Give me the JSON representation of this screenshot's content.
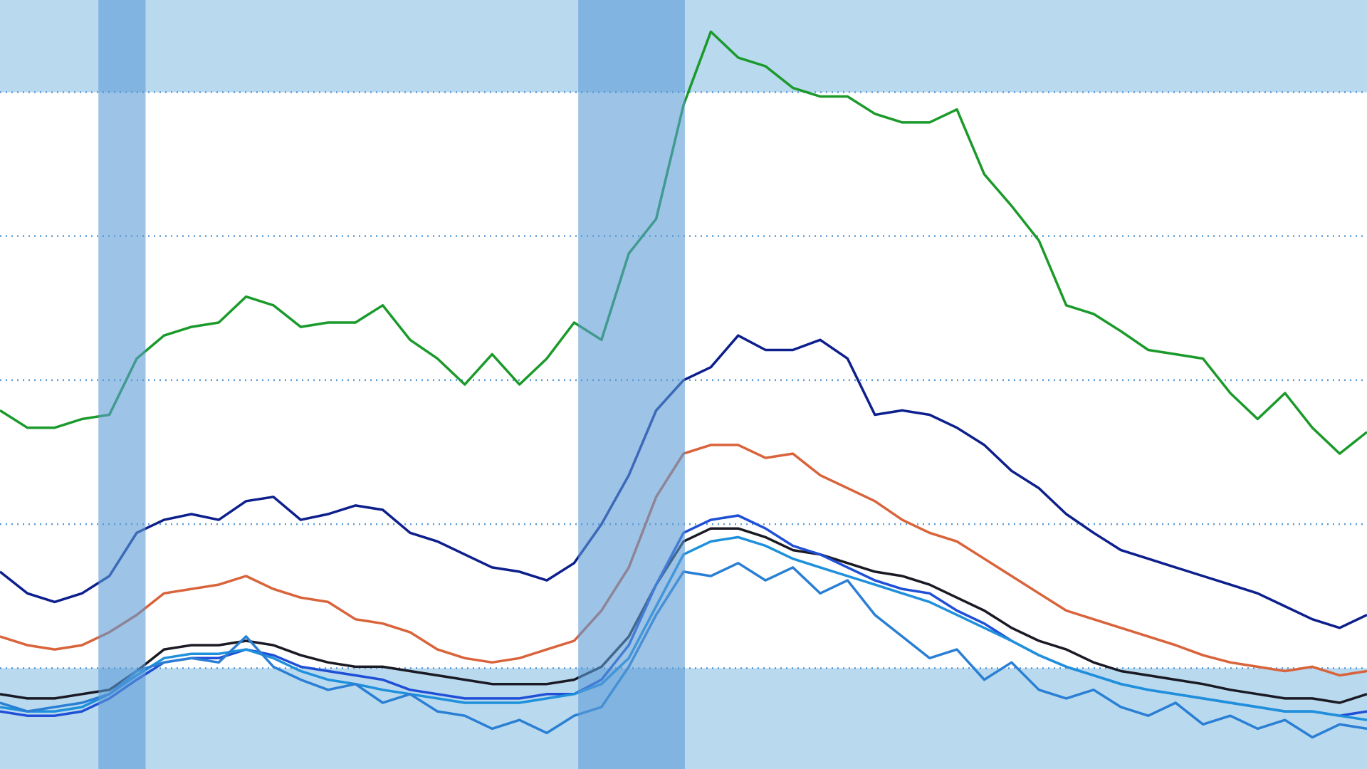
{
  "chart_data": {
    "type": "line",
    "x": [
      0,
      2,
      4,
      6,
      8,
      10,
      12,
      14,
      16,
      18,
      20,
      22,
      24,
      26,
      28,
      30,
      32,
      34,
      36,
      38,
      40,
      42,
      44,
      46,
      48,
      50,
      52,
      54,
      56,
      58,
      60,
      62,
      64,
      66,
      68,
      70,
      72,
      74,
      76,
      78,
      80,
      82,
      84,
      86,
      88,
      90,
      92,
      94,
      96,
      98,
      100
    ],
    "xlim": [
      0,
      100
    ],
    "ylim": [
      3,
      56.4
    ],
    "yticks": [
      10,
      20,
      30,
      40,
      50
    ],
    "grid": true,
    "grid_color": "#5b9bd5",
    "shade_above": 50,
    "shade_below": 10,
    "shade_color": "#b9d9ef",
    "recessions": [
      [
        7.2,
        10.65
      ],
      [
        42.3,
        50.1
      ]
    ],
    "recession_color": "#5b9bd5",
    "series": [
      {
        "color": "#1a9a2a",
        "values": [
          27.9,
          26.7,
          26.7,
          27.3,
          27.6,
          31.5,
          33.1,
          33.7,
          34.0,
          35.8,
          35.2,
          33.7,
          34.0,
          34.0,
          35.2,
          32.8,
          31.5,
          29.7,
          31.8,
          29.7,
          31.5,
          34.0,
          32.8,
          38.8,
          41.2,
          49.1,
          54.2,
          52.4,
          51.8,
          50.3,
          49.7,
          49.7,
          48.5,
          47.9,
          47.9,
          48.8,
          44.3,
          42.1,
          39.7,
          35.2,
          34.6,
          33.4,
          32.1,
          31.8,
          31.5,
          29.1,
          27.3,
          29.1,
          26.7,
          24.9,
          26.4
        ]
      },
      {
        "color": "#0d1f8c",
        "values": [
          16.7,
          15.2,
          14.6,
          15.2,
          16.4,
          19.4,
          20.3,
          20.7,
          20.3,
          21.6,
          21.9,
          20.3,
          20.7,
          21.3,
          21.0,
          19.4,
          18.8,
          17.9,
          17.0,
          16.7,
          16.1,
          17.3,
          20.0,
          23.4,
          27.9,
          30.0,
          30.9,
          33.1,
          32.1,
          32.1,
          32.8,
          31.5,
          27.6,
          27.9,
          27.6,
          26.7,
          25.5,
          23.7,
          22.5,
          20.7,
          19.4,
          18.2,
          17.6,
          17.0,
          16.4,
          15.8,
          15.2,
          14.3,
          13.4,
          12.8,
          13.7
        ]
      },
      {
        "color": "#d9633a",
        "values": [
          12.2,
          11.6,
          11.3,
          11.6,
          12.5,
          13.7,
          15.2,
          15.5,
          15.8,
          16.4,
          15.5,
          14.9,
          14.6,
          13.4,
          13.1,
          12.5,
          11.3,
          10.7,
          10.4,
          10.7,
          11.3,
          11.9,
          14.0,
          17.0,
          21.9,
          24.9,
          25.5,
          25.5,
          24.6,
          24.9,
          23.4,
          22.5,
          21.6,
          20.3,
          19.4,
          18.8,
          17.6,
          16.4,
          15.2,
          14.0,
          13.4,
          12.8,
          12.2,
          11.6,
          10.9,
          10.4,
          10.1,
          9.8,
          10.1,
          9.5,
          9.8
        ]
      },
      {
        "color": "#1a1a24",
        "values": [
          8.2,
          7.9,
          7.9,
          8.2,
          8.5,
          9.8,
          11.3,
          11.6,
          11.6,
          11.9,
          11.6,
          10.9,
          10.4,
          10.1,
          10.1,
          9.8,
          9.5,
          9.2,
          8.9,
          8.9,
          8.9,
          9.2,
          10.1,
          12.2,
          15.8,
          18.8,
          19.7,
          19.7,
          19.1,
          18.2,
          17.9,
          17.3,
          16.7,
          16.4,
          15.8,
          14.9,
          14.0,
          12.8,
          11.9,
          11.3,
          10.4,
          9.8,
          9.5,
          9.2,
          8.9,
          8.5,
          8.2,
          7.9,
          7.9,
          7.6,
          8.2
        ]
      },
      {
        "color": "#1f4fd6",
        "values": [
          7.0,
          6.7,
          6.7,
          7.0,
          7.9,
          9.2,
          10.4,
          10.7,
          10.7,
          11.3,
          10.9,
          10.1,
          9.8,
          9.5,
          9.2,
          8.5,
          8.2,
          7.9,
          7.9,
          7.9,
          8.2,
          8.2,
          9.2,
          11.6,
          15.8,
          19.4,
          20.3,
          20.6,
          19.7,
          18.5,
          17.9,
          17.0,
          16.1,
          15.5,
          15.2,
          14.0,
          13.1,
          11.9,
          10.9,
          10.1,
          9.5,
          8.9,
          8.5,
          8.2,
          7.9,
          7.6,
          7.3,
          7.0,
          7.0,
          6.7,
          7.0
        ]
      },
      {
        "color": "#1e90dc",
        "values": [
          7.3,
          7.0,
          7.0,
          7.3,
          8.2,
          9.5,
          10.7,
          11.0,
          11.0,
          11.3,
          10.7,
          9.8,
          9.2,
          8.9,
          8.5,
          8.2,
          7.9,
          7.6,
          7.6,
          7.6,
          7.9,
          8.2,
          8.9,
          10.7,
          14.3,
          17.9,
          18.8,
          19.1,
          18.5,
          17.6,
          17.0,
          16.4,
          15.8,
          15.2,
          14.6,
          13.7,
          12.8,
          11.9,
          10.9,
          10.1,
          9.5,
          8.9,
          8.5,
          8.2,
          7.9,
          7.6,
          7.3,
          7.0,
          7.0,
          6.7,
          6.4
        ]
      },
      {
        "color": "#2a7fd4",
        "values": [
          7.6,
          7.0,
          7.3,
          7.6,
          8.2,
          9.8,
          10.4,
          10.7,
          10.4,
          12.2,
          10.1,
          9.2,
          8.5,
          8.9,
          7.6,
          8.2,
          7.0,
          6.7,
          5.8,
          6.4,
          5.5,
          6.7,
          7.3,
          10.1,
          13.7,
          16.7,
          16.4,
          17.3,
          16.1,
          17.0,
          15.2,
          16.1,
          13.7,
          12.2,
          10.7,
          11.3,
          9.2,
          10.4,
          8.5,
          7.9,
          8.5,
          7.3,
          6.7,
          7.6,
          6.1,
          6.7,
          5.8,
          6.4,
          5.2,
          6.1,
          5.8
        ]
      }
    ]
  }
}
